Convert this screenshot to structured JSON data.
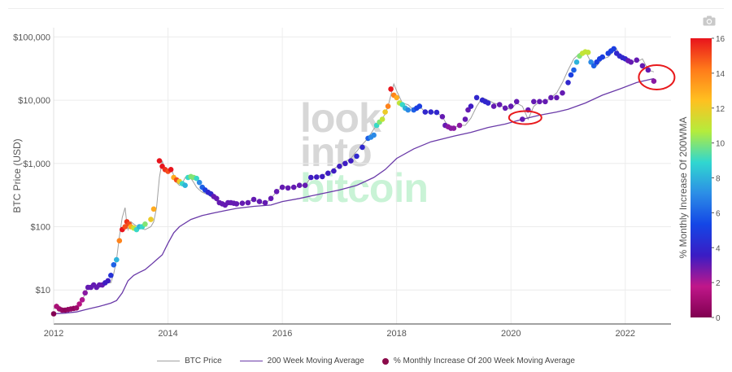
{
  "chart_data": {
    "type": "scatter",
    "ylabel": "BTC Price (USD)",
    "colorbar_label": "% Monthly Increase Of 200WMA",
    "colorbar_ticks": [
      "16",
      "14",
      "12",
      "10",
      "8",
      "6",
      "4",
      "2",
      "0"
    ],
    "colorbar_range": [
      0,
      16
    ],
    "colorscale": [
      "#800050",
      "#c0178a",
      "#3a1cc4",
      "#1446e6",
      "#2c8ee6",
      "#30d7d0",
      "#b4ec3c",
      "#ffc020",
      "#ff7a1a",
      "#e8141c"
    ],
    "x_ticks": [
      "2012",
      "2014",
      "2016",
      "2018",
      "2020",
      "2022"
    ],
    "x_range": [
      2012,
      2022.8
    ],
    "y_ticks": [
      {
        "label": "$10",
        "value": 10
      },
      {
        "label": "$100",
        "value": 100
      },
      {
        "label": "$1,000",
        "value": 1000
      },
      {
        "label": "$10,000",
        "value": 10000
      },
      {
        "label": "$100,000",
        "value": 100000
      }
    ],
    "y_scale": "log",
    "y_range": [
      2.9,
      140000
    ],
    "grid": true,
    "legend_position": "bottom",
    "watermark": [
      "look",
      "into",
      "bitcoin"
    ],
    "series": [
      {
        "name": "BTC Price",
        "color": "#a0a0a0",
        "x": [
          2012.0,
          2012.05,
          2012.1,
          2012.2,
          2012.3,
          2012.4,
          2012.5,
          2012.55,
          2012.6,
          2012.7,
          2012.8,
          2012.9,
          2013.0,
          2013.05,
          2013.1,
          2013.15,
          2013.2,
          2013.25,
          2013.28,
          2013.3,
          2013.35,
          2013.4,
          2013.5,
          2013.6,
          2013.7,
          2013.75,
          2013.8,
          2013.85,
          2013.9,
          2013.95,
          2014.0,
          2014.05,
          2014.1,
          2014.15,
          2014.2,
          2014.25,
          2014.3,
          2014.35,
          2014.4,
          2014.45,
          2014.5,
          2014.55,
          2014.6,
          2014.7,
          2014.8,
          2014.9,
          2015.0,
          2015.1,
          2015.2,
          2015.3,
          2015.4,
          2015.5,
          2015.6,
          2015.7,
          2015.8,
          2015.9,
          2016.0,
          2016.2,
          2016.4,
          2016.5,
          2016.6,
          2016.8,
          2017.0,
          2017.2,
          2017.4,
          2017.5,
          2017.6,
          2017.7,
          2017.8,
          2017.85,
          2017.9,
          2017.95,
          2018.0,
          2018.1,
          2018.2,
          2018.3,
          2018.4,
          2018.5,
          2018.6,
          2018.7,
          2018.8,
          2018.9,
          2019.0,
          2019.1,
          2019.2,
          2019.3,
          2019.4,
          2019.5,
          2019.6,
          2019.7,
          2019.8,
          2019.9,
          2020.0,
          2020.1,
          2020.2,
          2020.3,
          2020.4,
          2020.5,
          2020.6,
          2020.7,
          2020.8,
          2020.9,
          2021.0,
          2021.1,
          2021.2,
          2021.3,
          2021.4,
          2021.5,
          2021.6,
          2021.7,
          2021.8,
          2021.85,
          2021.9,
          2022.0,
          2022.1,
          2022.2,
          2022.3,
          2022.4,
          2022.5
        ],
        "y": [
          5,
          6,
          5.5,
          4.9,
          5,
          5.2,
          6.7,
          9,
          11,
          12,
          11,
          13,
          13,
          18,
          30,
          70,
          140,
          200,
          110,
          90,
          120,
          110,
          95,
          90,
          100,
          120,
          200,
          600,
          1100,
          800,
          700,
          850,
          650,
          500,
          450,
          480,
          600,
          620,
          580,
          500,
          420,
          380,
          350,
          320,
          280,
          230,
          220,
          240,
          230,
          235,
          250,
          270,
          240,
          230,
          280,
          360,
          430,
          420,
          450,
          600,
          620,
          700,
          950,
          1200,
          2000,
          2500,
          3500,
          4500,
          6000,
          8000,
          12000,
          18000,
          14000,
          9000,
          8500,
          7000,
          8000,
          6500,
          6500,
          6400,
          5500,
          3800,
          3700,
          4000,
          4000,
          5200,
          8000,
          11000,
          10000,
          9000,
          8500,
          7500,
          7200,
          9000,
          8000,
          5000,
          8000,
          9500,
          9500,
          11000,
          13000,
          19000,
          30000,
          45000,
          55000,
          60000,
          40000,
          35000,
          45000,
          48000,
          60000,
          65000,
          50000,
          45000,
          42000,
          40000,
          45000,
          30000,
          28000
        ]
      },
      {
        "name": "200 Week Moving Average",
        "color": "#6a3aa8",
        "x": [
          2012.0,
          2012.2,
          2012.4,
          2012.6,
          2012.8,
          2013.0,
          2013.1,
          2013.2,
          2013.3,
          2013.4,
          2013.5,
          2013.6,
          2013.7,
          2013.8,
          2013.9,
          2014.0,
          2014.1,
          2014.2,
          2014.4,
          2014.6,
          2014.8,
          2015.0,
          2015.2,
          2015.5,
          2015.8,
          2016.0,
          2016.3,
          2016.6,
          2017.0,
          2017.3,
          2017.6,
          2017.8,
          2018.0,
          2018.3,
          2018.6,
          2019.0,
          2019.3,
          2019.6,
          2019.9,
          2020.2,
          2020.5,
          2020.8,
          2021.0,
          2021.3,
          2021.6,
          2021.9,
          2022.2,
          2022.5
        ],
        "y": [
          4.2,
          4.3,
          4.5,
          5,
          5.5,
          6.2,
          6.8,
          9,
          14,
          17,
          19,
          21,
          25,
          30,
          36,
          55,
          80,
          100,
          130,
          150,
          165,
          180,
          195,
          210,
          220,
          250,
          280,
          320,
          380,
          450,
          600,
          800,
          1200,
          1700,
          2200,
          2700,
          3100,
          3700,
          4200,
          5000,
          5800,
          6500,
          7200,
          9000,
          12000,
          15000,
          19000,
          22000
        ]
      }
    ],
    "dots_series": {
      "name": "% Monthly Increase Of 200 Week Moving Average",
      "points": [
        [
          2012.0,
          4.2,
          0.1
        ],
        [
          2012.05,
          5.5,
          1.2
        ],
        [
          2012.1,
          5,
          1.0
        ],
        [
          2012.15,
          4.8,
          0.6
        ],
        [
          2012.2,
          4.8,
          0.4
        ],
        [
          2012.25,
          4.9,
          0.5
        ],
        [
          2012.3,
          5,
          0.6
        ],
        [
          2012.35,
          5.1,
          0.5
        ],
        [
          2012.4,
          5.2,
          0.8
        ],
        [
          2012.45,
          6,
          1.5
        ],
        [
          2012.5,
          7,
          2.0
        ],
        [
          2012.55,
          9,
          2.5
        ],
        [
          2012.6,
          11,
          3.0
        ],
        [
          2012.65,
          11,
          3.0
        ],
        [
          2012.7,
          12,
          3.0
        ],
        [
          2012.75,
          11,
          3.0
        ],
        [
          2012.8,
          12,
          3.0
        ],
        [
          2012.85,
          12,
          3.0
        ],
        [
          2012.9,
          13,
          3.5
        ],
        [
          2012.95,
          14,
          3.5
        ],
        [
          2013.0,
          17,
          4.5
        ],
        [
          2013.05,
          25,
          6
        ],
        [
          2013.1,
          30,
          8
        ],
        [
          2013.15,
          60,
          14
        ],
        [
          2013.2,
          90,
          16
        ],
        [
          2013.25,
          100,
          15
        ],
        [
          2013.28,
          120,
          15.5
        ],
        [
          2013.32,
          110,
          15
        ],
        [
          2013.35,
          100,
          13
        ],
        [
          2013.4,
          95,
          11
        ],
        [
          2013.45,
          90,
          9
        ],
        [
          2013.5,
          100,
          8
        ],
        [
          2013.55,
          100,
          9
        ],
        [
          2013.6,
          110,
          10
        ],
        [
          2013.7,
          130,
          12
        ],
        [
          2013.75,
          190,
          13
        ],
        [
          2013.85,
          1100,
          16
        ],
        [
          2013.9,
          900,
          16
        ],
        [
          2013.95,
          800,
          15.5
        ],
        [
          2014.0,
          750,
          15
        ],
        [
          2014.05,
          800,
          16
        ],
        [
          2014.1,
          600,
          13
        ],
        [
          2014.15,
          550,
          15
        ],
        [
          2014.2,
          520,
          12
        ],
        [
          2014.25,
          480,
          9
        ],
        [
          2014.3,
          450,
          8
        ],
        [
          2014.35,
          600,
          9
        ],
        [
          2014.4,
          620,
          10
        ],
        [
          2014.45,
          600,
          10
        ],
        [
          2014.5,
          580,
          9
        ],
        [
          2014.55,
          500,
          7
        ],
        [
          2014.6,
          420,
          6
        ],
        [
          2014.65,
          380,
          5
        ],
        [
          2014.7,
          350,
          4
        ],
        [
          2014.75,
          330,
          4
        ],
        [
          2014.8,
          300,
          3
        ],
        [
          2014.85,
          280,
          3
        ],
        [
          2014.9,
          240,
          3
        ],
        [
          2014.95,
          230,
          3
        ],
        [
          2015.0,
          220,
          3
        ],
        [
          2015.05,
          240,
          3
        ],
        [
          2015.1,
          240,
          3
        ],
        [
          2015.15,
          235,
          3
        ],
        [
          2015.2,
          230,
          3
        ],
        [
          2015.3,
          235,
          3
        ],
        [
          2015.4,
          240,
          3
        ],
        [
          2015.5,
          270,
          3
        ],
        [
          2015.6,
          250,
          3
        ],
        [
          2015.7,
          240,
          3
        ],
        [
          2015.8,
          280,
          3
        ],
        [
          2015.9,
          360,
          3
        ],
        [
          2016.0,
          420,
          3
        ],
        [
          2016.1,
          410,
          3
        ],
        [
          2016.2,
          420,
          3
        ],
        [
          2016.3,
          450,
          3
        ],
        [
          2016.4,
          450,
          3
        ],
        [
          2016.5,
          600,
          3.5
        ],
        [
          2016.6,
          610,
          3.5
        ],
        [
          2016.7,
          620,
          3.5
        ],
        [
          2016.8,
          700,
          3.5
        ],
        [
          2016.9,
          760,
          3.5
        ],
        [
          2017.0,
          900,
          3.5
        ],
        [
          2017.1,
          1000,
          3.5
        ],
        [
          2017.2,
          1100,
          3.5
        ],
        [
          2017.3,
          1300,
          4
        ],
        [
          2017.4,
          1800,
          4
        ],
        [
          2017.5,
          2500,
          6
        ],
        [
          2017.55,
          2600,
          7
        ],
        [
          2017.6,
          2800,
          7
        ],
        [
          2017.65,
          4000,
          9
        ],
        [
          2017.7,
          4500,
          10
        ],
        [
          2017.75,
          5000,
          11
        ],
        [
          2017.8,
          6500,
          12
        ],
        [
          2017.85,
          8000,
          14
        ],
        [
          2017.9,
          15000,
          16
        ],
        [
          2017.95,
          12000,
          14
        ],
        [
          2018.0,
          11000,
          13
        ],
        [
          2018.05,
          9000,
          11
        ],
        [
          2018.1,
          8500,
          9
        ],
        [
          2018.15,
          7500,
          8
        ],
        [
          2018.2,
          7000,
          7
        ],
        [
          2018.3,
          7000,
          6
        ],
        [
          2018.35,
          7500,
          5
        ],
        [
          2018.4,
          8000,
          5
        ],
        [
          2018.5,
          6500,
          4
        ],
        [
          2018.6,
          6500,
          4
        ],
        [
          2018.7,
          6400,
          4
        ],
        [
          2018.8,
          5500,
          3
        ],
        [
          2018.85,
          4000,
          3
        ],
        [
          2018.9,
          3800,
          2.5
        ],
        [
          2018.95,
          3600,
          2.5
        ],
        [
          2019.0,
          3600,
          2.5
        ],
        [
          2019.1,
          4000,
          2.5
        ],
        [
          2019.2,
          5000,
          3
        ],
        [
          2019.25,
          7000,
          3
        ],
        [
          2019.3,
          8000,
          3.5
        ],
        [
          2019.4,
          11000,
          4
        ],
        [
          2019.5,
          10000,
          4
        ],
        [
          2019.55,
          9500,
          4
        ],
        [
          2019.6,
          9000,
          4
        ],
        [
          2019.7,
          8000,
          3
        ],
        [
          2019.8,
          8500,
          3
        ],
        [
          2019.9,
          7500,
          3
        ],
        [
          2020.0,
          8000,
          3
        ],
        [
          2020.1,
          9500,
          3
        ],
        [
          2020.2,
          5000,
          3
        ],
        [
          2020.3,
          7000,
          3
        ],
        [
          2020.4,
          9500,
          3
        ],
        [
          2020.5,
          9500,
          3
        ],
        [
          2020.6,
          9500,
          3
        ],
        [
          2020.7,
          11000,
          3
        ],
        [
          2020.8,
          11000,
          3
        ],
        [
          2020.9,
          13000,
          3
        ],
        [
          2021.0,
          19000,
          4
        ],
        [
          2021.05,
          25000,
          5
        ],
        [
          2021.1,
          30000,
          6
        ],
        [
          2021.15,
          40000,
          8
        ],
        [
          2021.2,
          50000,
          10
        ],
        [
          2021.25,
          55000,
          11
        ],
        [
          2021.3,
          58000,
          11
        ],
        [
          2021.35,
          57000,
          11
        ],
        [
          2021.4,
          40000,
          7
        ],
        [
          2021.45,
          35000,
          6
        ],
        [
          2021.5,
          40000,
          5
        ],
        [
          2021.55,
          45000,
          5
        ],
        [
          2021.6,
          48000,
          5
        ],
        [
          2021.7,
          55000,
          5
        ],
        [
          2021.75,
          60000,
          5
        ],
        [
          2021.8,
          65000,
          5
        ],
        [
          2021.85,
          55000,
          4
        ],
        [
          2021.9,
          50000,
          4
        ],
        [
          2021.95,
          47000,
          4
        ],
        [
          2022.0,
          45000,
          4
        ],
        [
          2022.05,
          42000,
          3
        ],
        [
          2022.1,
          40000,
          3
        ],
        [
          2022.2,
          43000,
          3
        ],
        [
          2022.3,
          35000,
          3
        ],
        [
          2022.4,
          30000,
          3
        ],
        [
          2022.5,
          20000,
          2.5
        ]
      ]
    },
    "highlight_circles": [
      {
        "x": 2020.25,
        "y": 5300
      },
      {
        "x": 2022.55,
        "y": 23000
      }
    ]
  },
  "legend": {
    "price_label": "BTC Price",
    "wma_label": "200 Week Moving Average",
    "dots_label": "% Monthly Increase Of 200 Week Moving Average"
  }
}
